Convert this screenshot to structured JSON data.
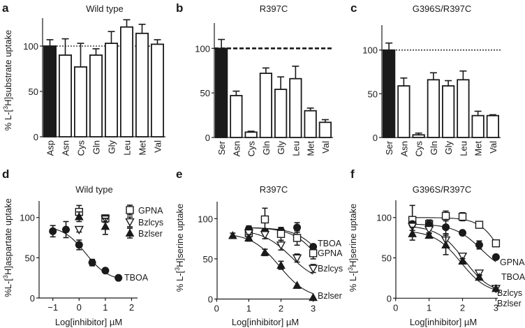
{
  "figure": {
    "panels": [
      "a",
      "b",
      "c",
      "d",
      "e",
      "f"
    ]
  },
  "chart_data": [
    {
      "panel": "a",
      "type": "bar",
      "title": "Wild type",
      "ylabel": "% L-[3H]substrate uptake",
      "ylabel_parts": {
        "pre": "% L-[",
        "sup": "3",
        "post": "H]substrate uptake"
      },
      "xlabel": "",
      "ylim": [
        0,
        130
      ],
      "yticks": [
        0,
        50,
        100
      ],
      "reference_line": 100,
      "reference_style": "dotted",
      "categories": [
        "Asp",
        "Asn",
        "Cys",
        "Gln",
        "Gly",
        "Leu",
        "Met",
        "Val"
      ],
      "values": [
        100,
        90,
        77,
        90,
        103,
        121,
        114,
        102
      ],
      "error": [
        7,
        18,
        26,
        7,
        13,
        8,
        10,
        5
      ],
      "fill": [
        "#1a1a1a",
        "#ffffff",
        "#ffffff",
        "#ffffff",
        "#ffffff",
        "#ffffff",
        "#ffffff",
        "#ffffff"
      ]
    },
    {
      "panel": "b",
      "type": "bar",
      "title": "R397C",
      "ylabel": "",
      "xlabel": "",
      "ylim": [
        0,
        130
      ],
      "yticks": [
        0,
        50,
        100
      ],
      "reference_line": 100,
      "reference_style": "dashed",
      "categories": [
        "Ser",
        "Asn",
        "Cys",
        "Gln",
        "Gly",
        "Leu",
        "Met",
        "Val"
      ],
      "values": [
        100,
        47,
        6,
        72,
        54,
        66,
        30,
        17
      ],
      "error": [
        10,
        5,
        1,
        6,
        14,
        14,
        3,
        3
      ],
      "fill": [
        "#1a1a1a",
        "#ffffff",
        "#ffffff",
        "#ffffff",
        "#ffffff",
        "#ffffff",
        "#ffffff",
        "#ffffff"
      ]
    },
    {
      "panel": "c",
      "type": "bar",
      "title": "G396S/R397C",
      "ylabel": "",
      "xlabel": "",
      "ylim": [
        0,
        130
      ],
      "yticks": [
        0,
        50,
        100
      ],
      "reference_line": 100,
      "reference_style": "dotted",
      "categories": [
        "Ser",
        "Asn",
        "Cys",
        "Gln",
        "Gly",
        "Leu",
        "Met",
        "Val"
      ],
      "values": [
        100,
        59,
        3,
        66,
        59,
        66,
        25,
        25
      ],
      "error": [
        8,
        9,
        2,
        8,
        6,
        10,
        5,
        1
      ],
      "fill": [
        "#1a1a1a",
        "#ffffff",
        "#ffffff",
        "#ffffff",
        "#ffffff",
        "#ffffff",
        "#ffffff",
        "#ffffff"
      ]
    },
    {
      "panel": "d",
      "type": "scatter",
      "title": "Wild type",
      "ylabel": "%L-[3H]aspartate uptake",
      "ylabel_parts": {
        "pre": "%L-[",
        "sup": "3",
        "post": "H]aspartate uptake"
      },
      "xlabel": "Log[inhibitor] µM",
      "xlim": [
        -1.5,
        2.2
      ],
      "ylim": [
        0,
        120
      ],
      "xticks": [
        -1,
        0,
        1,
        2
      ],
      "xtick_labels": [
        "−1",
        "0",
        "1",
        "2"
      ],
      "yticks": [
        0,
        50,
        100
      ],
      "legend_position": "top-right",
      "series": [
        {
          "name": "GPNA",
          "marker": "open-square",
          "x": [
            0,
            1
          ],
          "y": [
            107,
            99
          ],
          "error": [
            8,
            4
          ],
          "fit": false,
          "label_inline": false
        },
        {
          "name": "Bzlcys",
          "marker": "open-triangle-down",
          "x": [
            0,
            1
          ],
          "y": [
            85,
            98
          ],
          "error": [
            3,
            4
          ],
          "fit": false,
          "label_inline": false
        },
        {
          "name": "Bzlser",
          "marker": "filled-triangle-up",
          "x": [
            0,
            1
          ],
          "y": [
            101,
            89
          ],
          "error": [
            6,
            10
          ],
          "fit": false,
          "label_inline": false
        },
        {
          "name": "TBOA",
          "marker": "filled-circle",
          "x": [
            -1,
            -0.5,
            0,
            0.5,
            1,
            1.5
          ],
          "y": [
            83,
            85,
            66,
            44,
            34,
            25
          ],
          "error": [
            7,
            10,
            6,
            4,
            1,
            1
          ],
          "fit": true,
          "fit_params": {
            "top": 90,
            "bottom": 21,
            "logIC50": 0.25,
            "hill": 1.0,
            "range": [
              -1,
              1.5
            ]
          },
          "label_inline": true
        }
      ]
    },
    {
      "panel": "e",
      "type": "scatter",
      "title": "R397C",
      "ylabel": "% L-[3H]serine uptake",
      "ylabel_parts": {
        "pre": "% L-[",
        "sup": "3",
        "post": "H]serine uptake"
      },
      "xlabel": "Log[inhibitor] µM",
      "xlim": [
        0,
        3.2
      ],
      "ylim": [
        0,
        120
      ],
      "xticks": [
        0,
        1,
        2,
        3
      ],
      "xtick_labels": [
        "0",
        "1",
        "2",
        "3"
      ],
      "yticks": [
        0,
        50,
        100
      ],
      "legend_position": "inline-right",
      "series": [
        {
          "name": "TBOA",
          "marker": "filled-circle",
          "x": [
            1,
            1.5,
            2,
            2.5,
            3
          ],
          "y": [
            87,
            84,
            85,
            89,
            65
          ],
          "error": [
            4,
            3,
            4,
            6,
            3
          ],
          "fit": true,
          "fit_params": {
            "top": 89,
            "bottom": 0,
            "logIC50": 3.45,
            "hill": 1.0,
            "range": [
              1,
              3
            ]
          },
          "label_inline": true
        },
        {
          "name": "GPNA",
          "marker": "open-square",
          "x": [
            1,
            1.5,
            2,
            2.5,
            3
          ],
          "y": [
            82,
            99,
            81,
            76,
            57
          ],
          "error": [
            4,
            14,
            8,
            9,
            7
          ],
          "fit": true,
          "fit_params": {
            "top": 89,
            "bottom": 0,
            "logIC50": 3.3,
            "hill": 1.0,
            "range": [
              1,
              3
            ]
          },
          "label_inline": true
        },
        {
          "name": "Bzlcys",
          "marker": "open-triangle-down",
          "x": [
            1,
            1.5,
            2,
            2.5,
            3
          ],
          "y": [
            82,
            80,
            67,
            51,
            38
          ],
          "error": [
            5,
            5,
            6,
            5,
            5
          ],
          "fit": true,
          "fit_params": {
            "top": 86,
            "bottom": 20,
            "logIC50": 2.3,
            "hill": 1.0,
            "range": [
              1,
              3
            ]
          },
          "label_inline": true
        },
        {
          "name": "Bzlser",
          "marker": "filled-triangle-up",
          "x": [
            0.5,
            1,
            1.5,
            2,
            2.5,
            3
          ],
          "y": [
            79,
            76,
            58,
            42,
            17,
            2
          ],
          "error": [
            3,
            4,
            4,
            5,
            1,
            1
          ],
          "fit": true,
          "fit_params": {
            "top": 82,
            "bottom": 0,
            "logIC50": 1.95,
            "hill": 1.0,
            "range": [
              0.5,
              3
            ]
          },
          "label_inline": true
        }
      ]
    },
    {
      "panel": "f",
      "type": "scatter",
      "title": "G396S/R397C",
      "ylabel": "% L-[3H]serine uptake",
      "ylabel_parts": {
        "pre": "% L-[",
        "sup": "3",
        "post": "H]serine uptake"
      },
      "xlabel": "Log[inhibitor] µM",
      "xlim": [
        0,
        3.2
      ],
      "ylim": [
        0,
        120
      ],
      "xticks": [
        0,
        1,
        2,
        3
      ],
      "xtick_labels": [
        "0",
        "1",
        "2",
        "3"
      ],
      "yticks": [
        0,
        50,
        100
      ],
      "legend_position": "inline-right",
      "series": [
        {
          "name": "GPNA",
          "marker": "open-square",
          "x": [
            0.5,
            1,
            1.5,
            2,
            2.5,
            3
          ],
          "y": [
            97,
            92,
            102,
            101,
            91,
            68
          ],
          "error": [
            18,
            5,
            6,
            5,
            1,
            1
          ],
          "fit": true,
          "fit_params": {
            "top": 100,
            "bottom": 0,
            "logIC50": 3.25,
            "hill": 1.3,
            "range": [
              0.5,
              3
            ]
          },
          "label_inline": true
        },
        {
          "name": "TBOA",
          "marker": "filled-circle",
          "x": [
            0.5,
            1,
            1.5,
            2,
            2.5,
            3
          ],
          "y": [
            92,
            91,
            88,
            81,
            66,
            51
          ],
          "error": [
            3,
            4,
            8,
            1,
            5,
            1
          ],
          "fit": true,
          "fit_params": {
            "top": 92,
            "bottom": 30,
            "logIC50": 2.55,
            "hill": 1.1,
            "range": [
              0.5,
              3
            ]
          },
          "label_inline": true
        },
        {
          "name": "Bzlcys",
          "marker": "open-triangle-down",
          "x": [
            0.5,
            1,
            1.5,
            2,
            2.5,
            3
          ],
          "y": [
            89,
            85,
            72,
            52,
            31,
            12
          ],
          "error": [
            5,
            5,
            8,
            3,
            3,
            1
          ],
          "fit": true,
          "fit_params": {
            "top": 90,
            "bottom": 5,
            "logIC50": 2.05,
            "hill": 1.1,
            "range": [
              0.5,
              3
            ]
          },
          "label_inline": true
        },
        {
          "name": "Bzlser",
          "marker": "filled-triangle-up",
          "x": [
            0.5,
            1,
            1.5,
            2,
            2.5,
            3
          ],
          "y": [
            80,
            78,
            66,
            46,
            26,
            12
          ],
          "error": [
            8,
            3,
            12,
            3,
            3,
            1
          ],
          "fit": true,
          "fit_params": {
            "top": 84,
            "bottom": 5,
            "logIC50": 1.95,
            "hill": 1.1,
            "range": [
              0.5,
              3
            ]
          },
          "label_inline": true
        }
      ]
    }
  ]
}
